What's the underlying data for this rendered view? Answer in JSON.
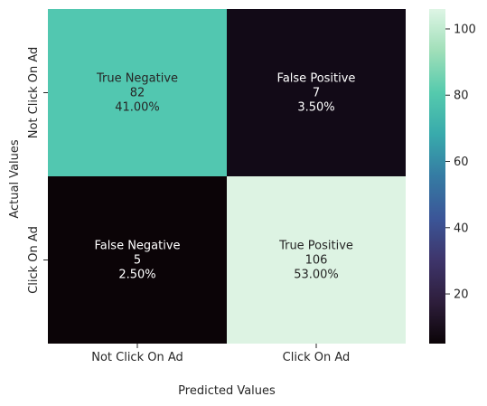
{
  "chart_data": {
    "type": "heatmap",
    "title": "",
    "xlabel": "Predicted Values",
    "ylabel": "Actual Values",
    "x_categories": [
      "Not Click On Ad",
      "Click On Ad"
    ],
    "y_categories": [
      "Not Click On Ad",
      "Click On Ad"
    ],
    "cells": [
      {
        "row": 0,
        "col": 0,
        "label": "True Negative",
        "value": 82,
        "percent": "41.00%",
        "fill": "#52c7b0",
        "text_color": "#262626"
      },
      {
        "row": 0,
        "col": 1,
        "label": "False Positive",
        "value": 7,
        "percent": "3.50%",
        "fill": "#120a17",
        "text_color": "#ffffff"
      },
      {
        "row": 1,
        "col": 0,
        "label": "False Negative",
        "value": 5,
        "percent": "2.50%",
        "fill": "#0b0407",
        "text_color": "#ffffff"
      },
      {
        "row": 1,
        "col": 1,
        "label": "True Positive",
        "value": 106,
        "percent": "53.00%",
        "fill": "#ddf3e3",
        "text_color": "#262626"
      }
    ],
    "colorbar": {
      "range": [
        5,
        106
      ],
      "ticks": [
        20,
        40,
        60,
        80,
        100
      ],
      "colormap": "mako",
      "stops": [
        "#0b0407",
        "#2e1e3c",
        "#3e356b",
        "#3b5698",
        "#357ba3",
        "#38aaac",
        "#55caad",
        "#a0dfb9",
        "#def5e5"
      ]
    }
  }
}
